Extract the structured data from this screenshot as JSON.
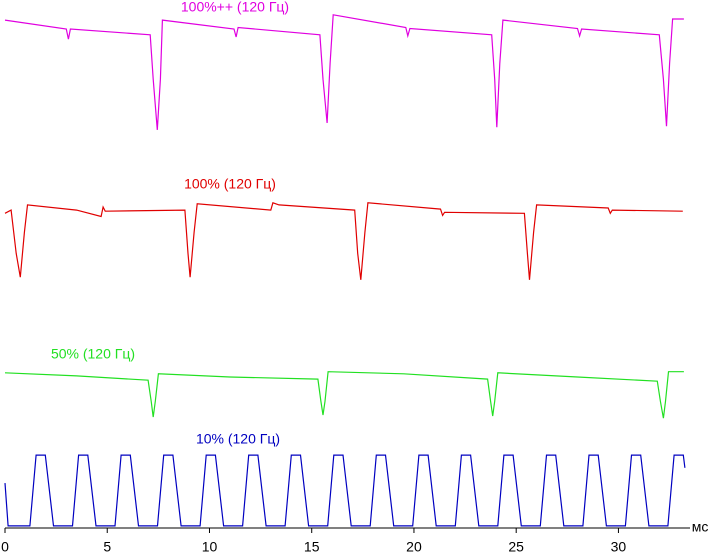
{
  "chart_data": {
    "type": "line",
    "x_label": "мс",
    "xlim": [
      0,
      33.5
    ],
    "xticks": [
      0,
      5,
      10,
      15,
      20,
      25,
      30
    ],
    "ylim": [
      0,
      100
    ],
    "series": [
      {
        "name": "100%++ (120 Гц)",
        "color": "#e000e0",
        "x": [
          0,
          3.0,
          3.1,
          3.2,
          7.1,
          7.25,
          7.45,
          7.6,
          7.7,
          11.2,
          11.3,
          11.4,
          15.4,
          15.55,
          15.75,
          15.9,
          16.05,
          19.6,
          19.7,
          19.8,
          23.8,
          23.95,
          24.05,
          24.2,
          24.35,
          28.0,
          28.1,
          28.2,
          32.0,
          32.2,
          32.35,
          32.5,
          32.65,
          33.2
        ],
        "values": [
          96.2,
          94.5,
          92.6,
          94.5,
          93.4,
          85,
          75.4,
          85,
          96.2,
          94.5,
          93,
          94.8,
          93.4,
          85,
          76.7,
          88,
          97.2,
          94.8,
          93.2,
          94.6,
          93.4,
          85,
          75.9,
          88,
          96.2,
          94.6,
          93.2,
          94.5,
          93.4,
          85,
          76.1,
          88,
          96.4,
          96.4
        ]
      },
      {
        "name": "100% (120 Гц)",
        "color": "#e00000",
        "x": [
          0,
          0.3,
          0.55,
          0.75,
          0.95,
          1.1,
          3.5,
          4.7,
          4.8,
          4.9,
          8.8,
          8.95,
          9.05,
          9.25,
          9.4,
          13.0,
          13.1,
          13.4,
          17.1,
          17.25,
          17.4,
          17.6,
          17.75,
          21.3,
          21.4,
          21.5,
          25.4,
          25.55,
          25.65,
          25.85,
          26.0,
          29.5,
          29.6,
          29.7,
          33.15
        ],
        "values": [
          59.6,
          60.2,
          52,
          47.5,
          56,
          61.2,
          60.2,
          59,
          60.8,
          60,
          60.2,
          52,
          47.5,
          56,
          61.4,
          60.2,
          61.6,
          61.2,
          60.2,
          52,
          47.0,
          56,
          61.6,
          60.4,
          59.2,
          59.8,
          59.6,
          52,
          47.0,
          56,
          61.2,
          60.6,
          59.6,
          60.2,
          60.0
        ]
      },
      {
        "name": "50% (120 Гц)",
        "color": "#22e022",
        "x": [
          0,
          3.5,
          7.0,
          7.15,
          7.25,
          7.35,
          7.5,
          11.0,
          15.3,
          15.45,
          15.55,
          15.65,
          15.8,
          19.5,
          23.6,
          23.75,
          23.85,
          23.95,
          24.1,
          28.0,
          31.9,
          32.05,
          32.2,
          32.3,
          32.45,
          33.2
        ],
        "values": [
          29.4,
          28.8,
          28.0,
          24,
          21.0,
          24,
          29.2,
          28.6,
          28.2,
          24,
          21.4,
          24,
          29.6,
          29.2,
          28.2,
          24,
          21.2,
          24,
          29.4,
          28.6,
          27.8,
          24,
          20.8,
          24,
          29.6,
          29.6
        ]
      },
      {
        "name": "10% (120 Гц)",
        "color": "#0000c0",
        "x": [
          0,
          0.15,
          1.22,
          1.52,
          1.97,
          2.37,
          3.3,
          3.6,
          4.05,
          4.45,
          5.38,
          5.68,
          6.13,
          6.53,
          7.46,
          7.76,
          8.21,
          8.61,
          9.54,
          9.84,
          10.29,
          10.69,
          11.62,
          11.92,
          12.37,
          12.77,
          13.7,
          14.0,
          14.45,
          14.85,
          15.78,
          16.08,
          16.53,
          16.93,
          17.86,
          18.16,
          18.61,
          19.01,
          19.94,
          20.24,
          20.69,
          21.09,
          22.02,
          22.32,
          22.77,
          23.17,
          24.1,
          24.4,
          24.85,
          25.25,
          26.18,
          26.48,
          26.93,
          27.33,
          28.26,
          28.56,
          29.01,
          29.41,
          30.34,
          30.64,
          31.09,
          31.49,
          32.42,
          32.72,
          33.17,
          33.25
        ],
        "values": [
          8.5,
          0.4,
          0.4,
          13.8,
          13.8,
          0.4,
          0.4,
          13.8,
          13.8,
          0.4,
          0.4,
          13.8,
          13.8,
          0.4,
          0.4,
          13.8,
          13.8,
          0.4,
          0.4,
          13.8,
          13.8,
          0.4,
          0.4,
          13.8,
          13.8,
          0.4,
          0.4,
          13.8,
          13.8,
          0.4,
          0.4,
          13.8,
          13.8,
          0.4,
          0.4,
          13.8,
          13.8,
          0.4,
          0.4,
          13.8,
          13.8,
          0.4,
          0.4,
          13.8,
          13.8,
          0.4,
          0.4,
          13.8,
          13.8,
          0.4,
          0.4,
          13.8,
          13.8,
          0.4,
          0.4,
          13.8,
          13.8,
          0.4,
          0.4,
          13.8,
          13.8,
          0.4,
          0.4,
          13.8,
          13.8,
          11.4
        ]
      }
    ]
  }
}
